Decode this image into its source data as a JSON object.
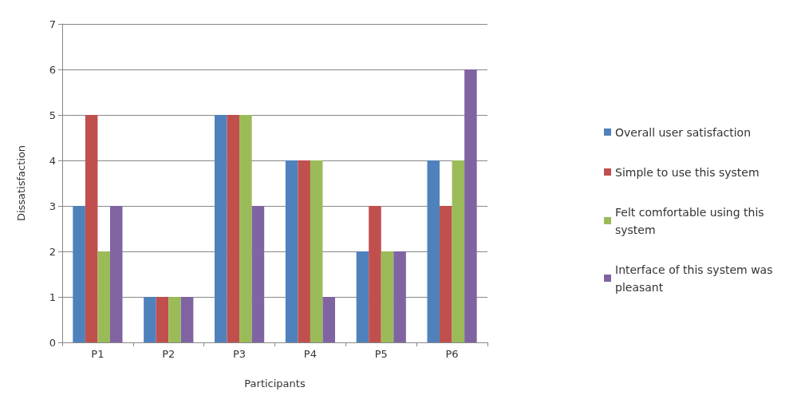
{
  "chart_data": {
    "type": "bar",
    "xlabel": "Participants",
    "ylabel": "Dissatisfaction",
    "categories": [
      "P1",
      "P2",
      "P3",
      "P4",
      "P5",
      "P6"
    ],
    "series": [
      {
        "name": "Overall user satisfaction",
        "color": "#4f81bd",
        "values": [
          3,
          1,
          5,
          4,
          2,
          4
        ]
      },
      {
        "name": "Simple to use this system",
        "color": "#c0504d",
        "values": [
          5,
          1,
          5,
          4,
          3,
          3
        ]
      },
      {
        "name": "Felt comfortable using this system",
        "color": "#9bbb59",
        "values": [
          2,
          1,
          5,
          4,
          2,
          4
        ]
      },
      {
        "name": "Interface of this system was pleasant",
        "color": "#8064a2",
        "values": [
          3,
          1,
          3,
          1,
          2,
          6
        ]
      }
    ],
    "ylim": [
      0,
      7
    ],
    "yticks": [
      0,
      1,
      2,
      3,
      4,
      5,
      6,
      7
    ],
    "grid": "y",
    "legend": "right"
  }
}
